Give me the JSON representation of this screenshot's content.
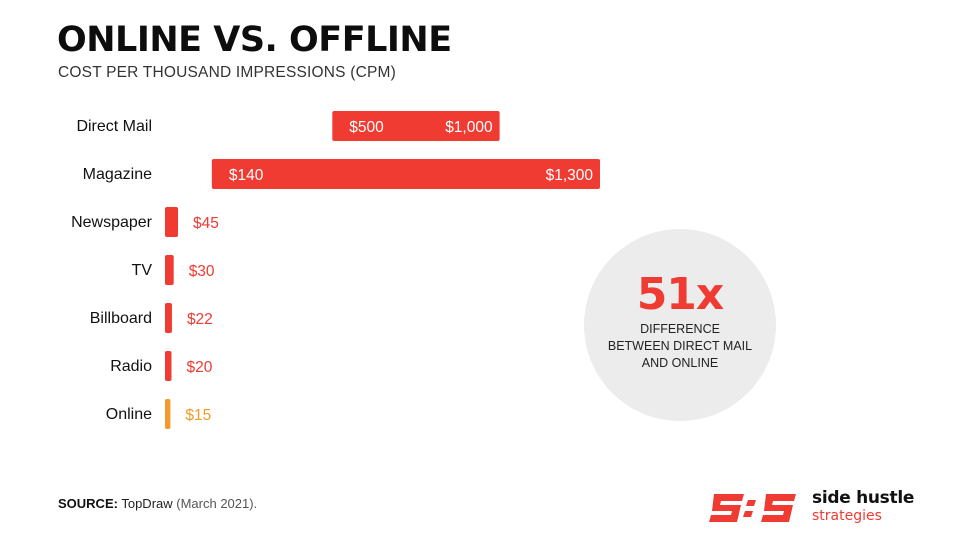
{
  "header": {
    "title": "ONLINE VS. OFFLINE",
    "subtitle": "COST PER THOUSAND IMPRESSIONS (CPM)"
  },
  "chart_data": {
    "type": "bar",
    "orientation": "horizontal",
    "categories": [
      "Direct Mail",
      "Magazine",
      "Newspaper",
      "TV",
      "Billboard",
      "Radio",
      "Online"
    ],
    "series": [
      {
        "low": 500,
        "high": 1000,
        "low_label": "$500",
        "high_label": "$1,000",
        "color": "#ef3b32"
      },
      {
        "low": 140,
        "high": 1300,
        "low_label": "$140",
        "high_label": "$1,300",
        "color": "#ef3b32"
      },
      {
        "low": 0,
        "high": 45,
        "low_label": "",
        "high_label": "$45",
        "color": "#ef3b32"
      },
      {
        "low": 0,
        "high": 30,
        "low_label": "",
        "high_label": "$30",
        "color": "#ef3b32"
      },
      {
        "low": 0,
        "high": 22,
        "low_label": "",
        "high_label": "$22",
        "color": "#ef3b32"
      },
      {
        "low": 0,
        "high": 20,
        "low_label": "",
        "high_label": "$20",
        "color": "#ef3b32"
      },
      {
        "low": 0,
        "high": 15,
        "low_label": "",
        "high_label": "$15",
        "color": "#f39a2a"
      }
    ],
    "title": "ONLINE VS. OFFLINE",
    "xlabel": "",
    "ylabel": "",
    "grid": false
  },
  "callout": {
    "value": "51x",
    "line1": "DIFFERENCE",
    "line2": "BETWEEN DIRECT MAIL",
    "line3": "AND ONLINE"
  },
  "footer": {
    "source_label": "SOURCE:",
    "source_name": "TopDraw",
    "source_date": "(March 2021)."
  },
  "brand": {
    "name_line1": "side hustle",
    "name_line2": "strategies",
    "accent": "#ef3b32"
  }
}
